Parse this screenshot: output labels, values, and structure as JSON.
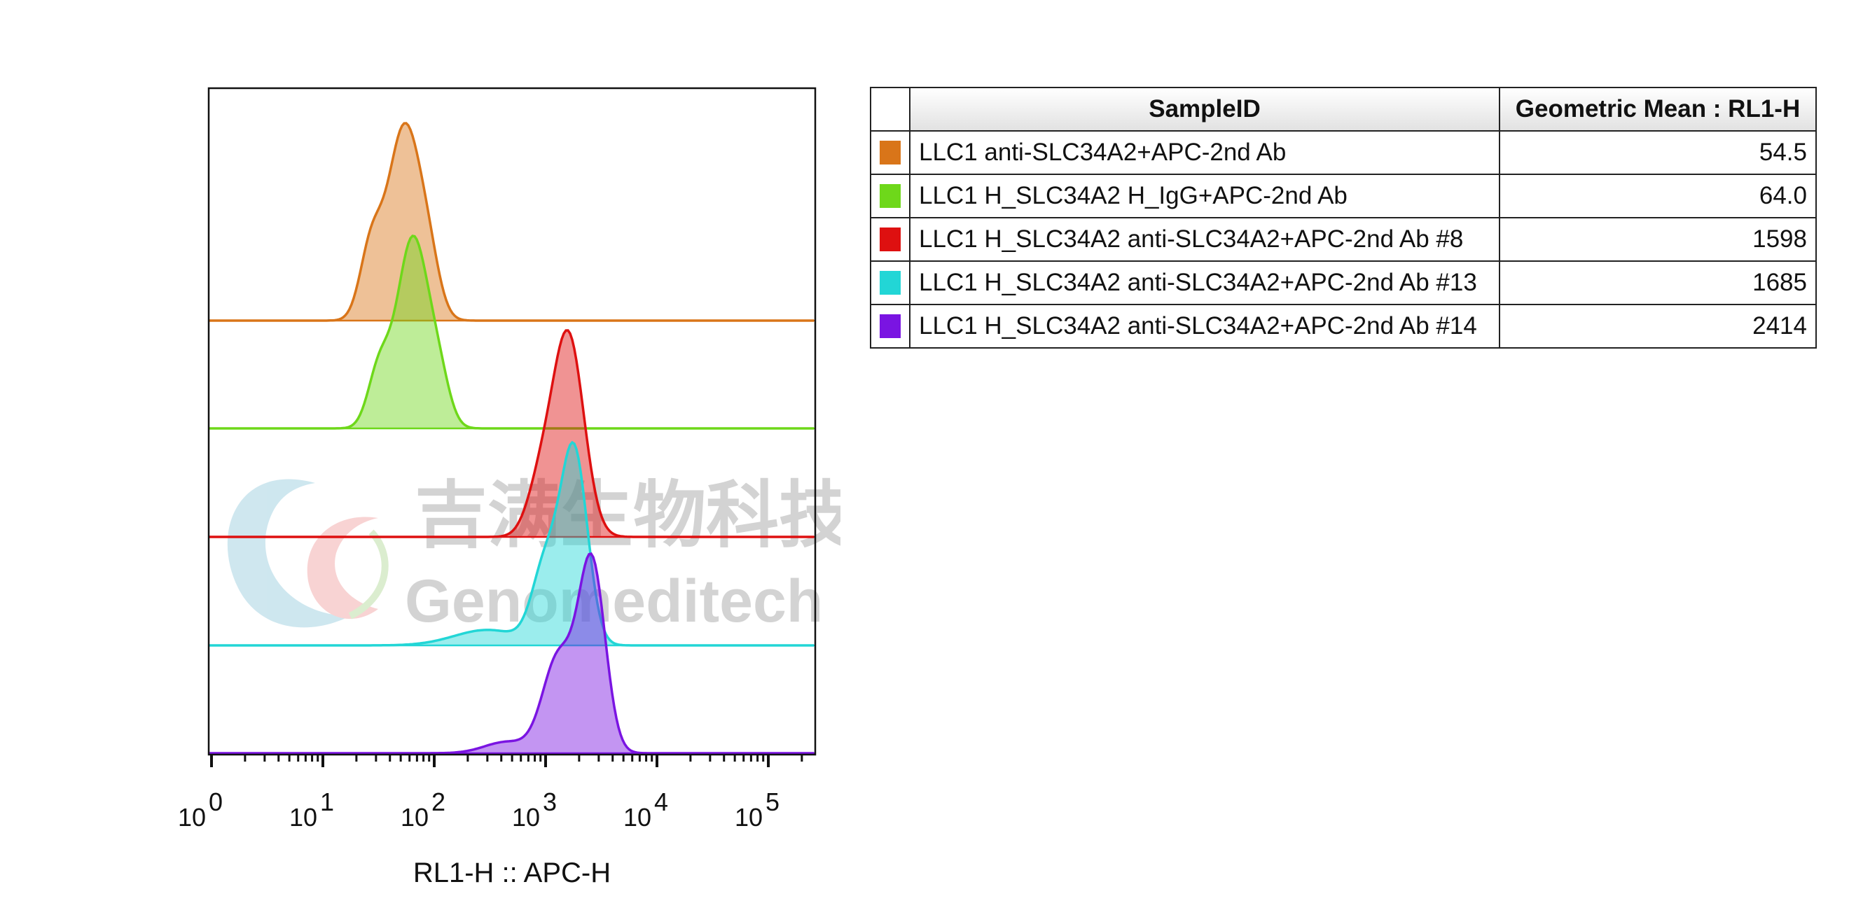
{
  "chart_data": {
    "type": "histogram-overlay",
    "x_axis": {
      "scale": "log",
      "label": "RL1-H :: APC-H",
      "range": [
        1,
        1000000
      ],
      "tick_labels": [
        {
          "base": "10",
          "exp": "0",
          "value": 1
        },
        {
          "base": "10",
          "exp": "1",
          "value": 10
        },
        {
          "base": "10",
          "exp": "2",
          "value": 100
        },
        {
          "base": "10",
          "exp": "3",
          "value": 1000
        },
        {
          "base": "10",
          "exp": "4",
          "value": 10000
        },
        {
          "base": "10",
          "exp": "5",
          "value": 100000
        }
      ]
    },
    "layout_style": "staggered offset histograms",
    "series": [
      {
        "name": "LLC1 anti-SLC34A2+APC-2nd Ab",
        "color": "#d97519",
        "peaks": [
          {
            "mu": 54,
            "sigma_log": 0.15,
            "amp": 1.0
          },
          {
            "mu": 27,
            "sigma_log": 0.1,
            "amp": 0.35
          },
          {
            "mu": 90,
            "sigma_log": 0.1,
            "amp": 0.2
          }
        ]
      },
      {
        "name": "LLC1 H_SLC34A2 H_IgG+APC-2nd Ab",
        "color": "#6ed81a",
        "peaks": [
          {
            "mu": 64,
            "sigma_log": 0.14,
            "amp": 1.0
          },
          {
            "mu": 32,
            "sigma_log": 0.1,
            "amp": 0.3
          },
          {
            "mu": 110,
            "sigma_log": 0.1,
            "amp": 0.22
          }
        ]
      },
      {
        "name": "LLC1 H_SLC34A2 anti-SLC34A2+APC-2nd Ab #8",
        "color": "#de1010",
        "peaks": [
          {
            "mu": 1598,
            "sigma_log": 0.14,
            "amp": 1.0
          },
          {
            "mu": 900,
            "sigma_log": 0.12,
            "amp": 0.25
          }
        ]
      },
      {
        "name": "LLC1 H_SLC34A2 anti-SLC34A2+APC-2nd Ab #13",
        "color": "#22d6d6",
        "peaks": [
          {
            "mu": 1800,
            "sigma_log": 0.12,
            "amp": 1.0
          },
          {
            "mu": 1000,
            "sigma_log": 0.12,
            "amp": 0.4
          },
          {
            "mu": 300,
            "sigma_log": 0.3,
            "amp": 0.08
          }
        ]
      },
      {
        "name": "LLC1 H_SLC34A2 anti-SLC34A2+APC-2nd Ab #14",
        "color": "#7a14e2",
        "peaks": [
          {
            "mu": 2600,
            "sigma_log": 0.12,
            "amp": 1.0
          },
          {
            "mu": 1300,
            "sigma_log": 0.14,
            "amp": 0.5
          },
          {
            "mu": 450,
            "sigma_log": 0.2,
            "amp": 0.06
          }
        ]
      }
    ],
    "grid": false,
    "legend_placement": "right table"
  },
  "table": {
    "headers": {
      "sample": "SampleID",
      "mean": "Geometric Mean : RL1-H"
    },
    "rows": [
      {
        "sample": "LLC1 anti-SLC34A2+APC-2nd Ab",
        "mean": "54.5",
        "color": "#d97519"
      },
      {
        "sample": "LLC1 H_SLC34A2 H_IgG+APC-2nd Ab",
        "mean": "64.0",
        "color": "#6ed81a"
      },
      {
        "sample": "LLC1 H_SLC34A2 anti-SLC34A2+APC-2nd Ab #8",
        "mean": "1598",
        "color": "#de1010"
      },
      {
        "sample": "LLC1 H_SLC34A2 anti-SLC34A2+APC-2nd Ab #13",
        "mean": "1685",
        "color": "#22d6d6"
      },
      {
        "sample": "LLC1 H_SLC34A2 anti-SLC34A2+APC-2nd Ab #14",
        "mean": "2414",
        "color": "#7a14e2"
      }
    ]
  },
  "watermark": {
    "cn": "吉满生物科技",
    "en": "Genomeditech"
  }
}
